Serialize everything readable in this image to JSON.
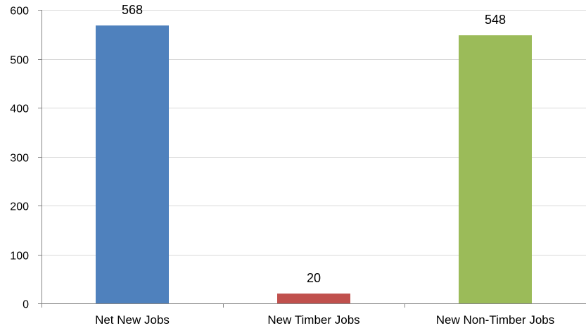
{
  "chart_data": {
    "type": "bar",
    "categories": [
      "Net New Jobs",
      "New Timber Jobs",
      "New Non-Timber Jobs"
    ],
    "values": [
      568,
      20,
      548
    ],
    "colors": [
      "#4F81BD",
      "#C0504D",
      "#9BBB59"
    ],
    "data_labels": [
      "568",
      "20",
      "548"
    ],
    "yticks": [
      "0",
      "100",
      "200",
      "300",
      "400",
      "500",
      "600"
    ],
    "ylim": [
      0,
      600
    ],
    "grid": true,
    "title": "",
    "xlabel": "",
    "ylabel": ""
  }
}
